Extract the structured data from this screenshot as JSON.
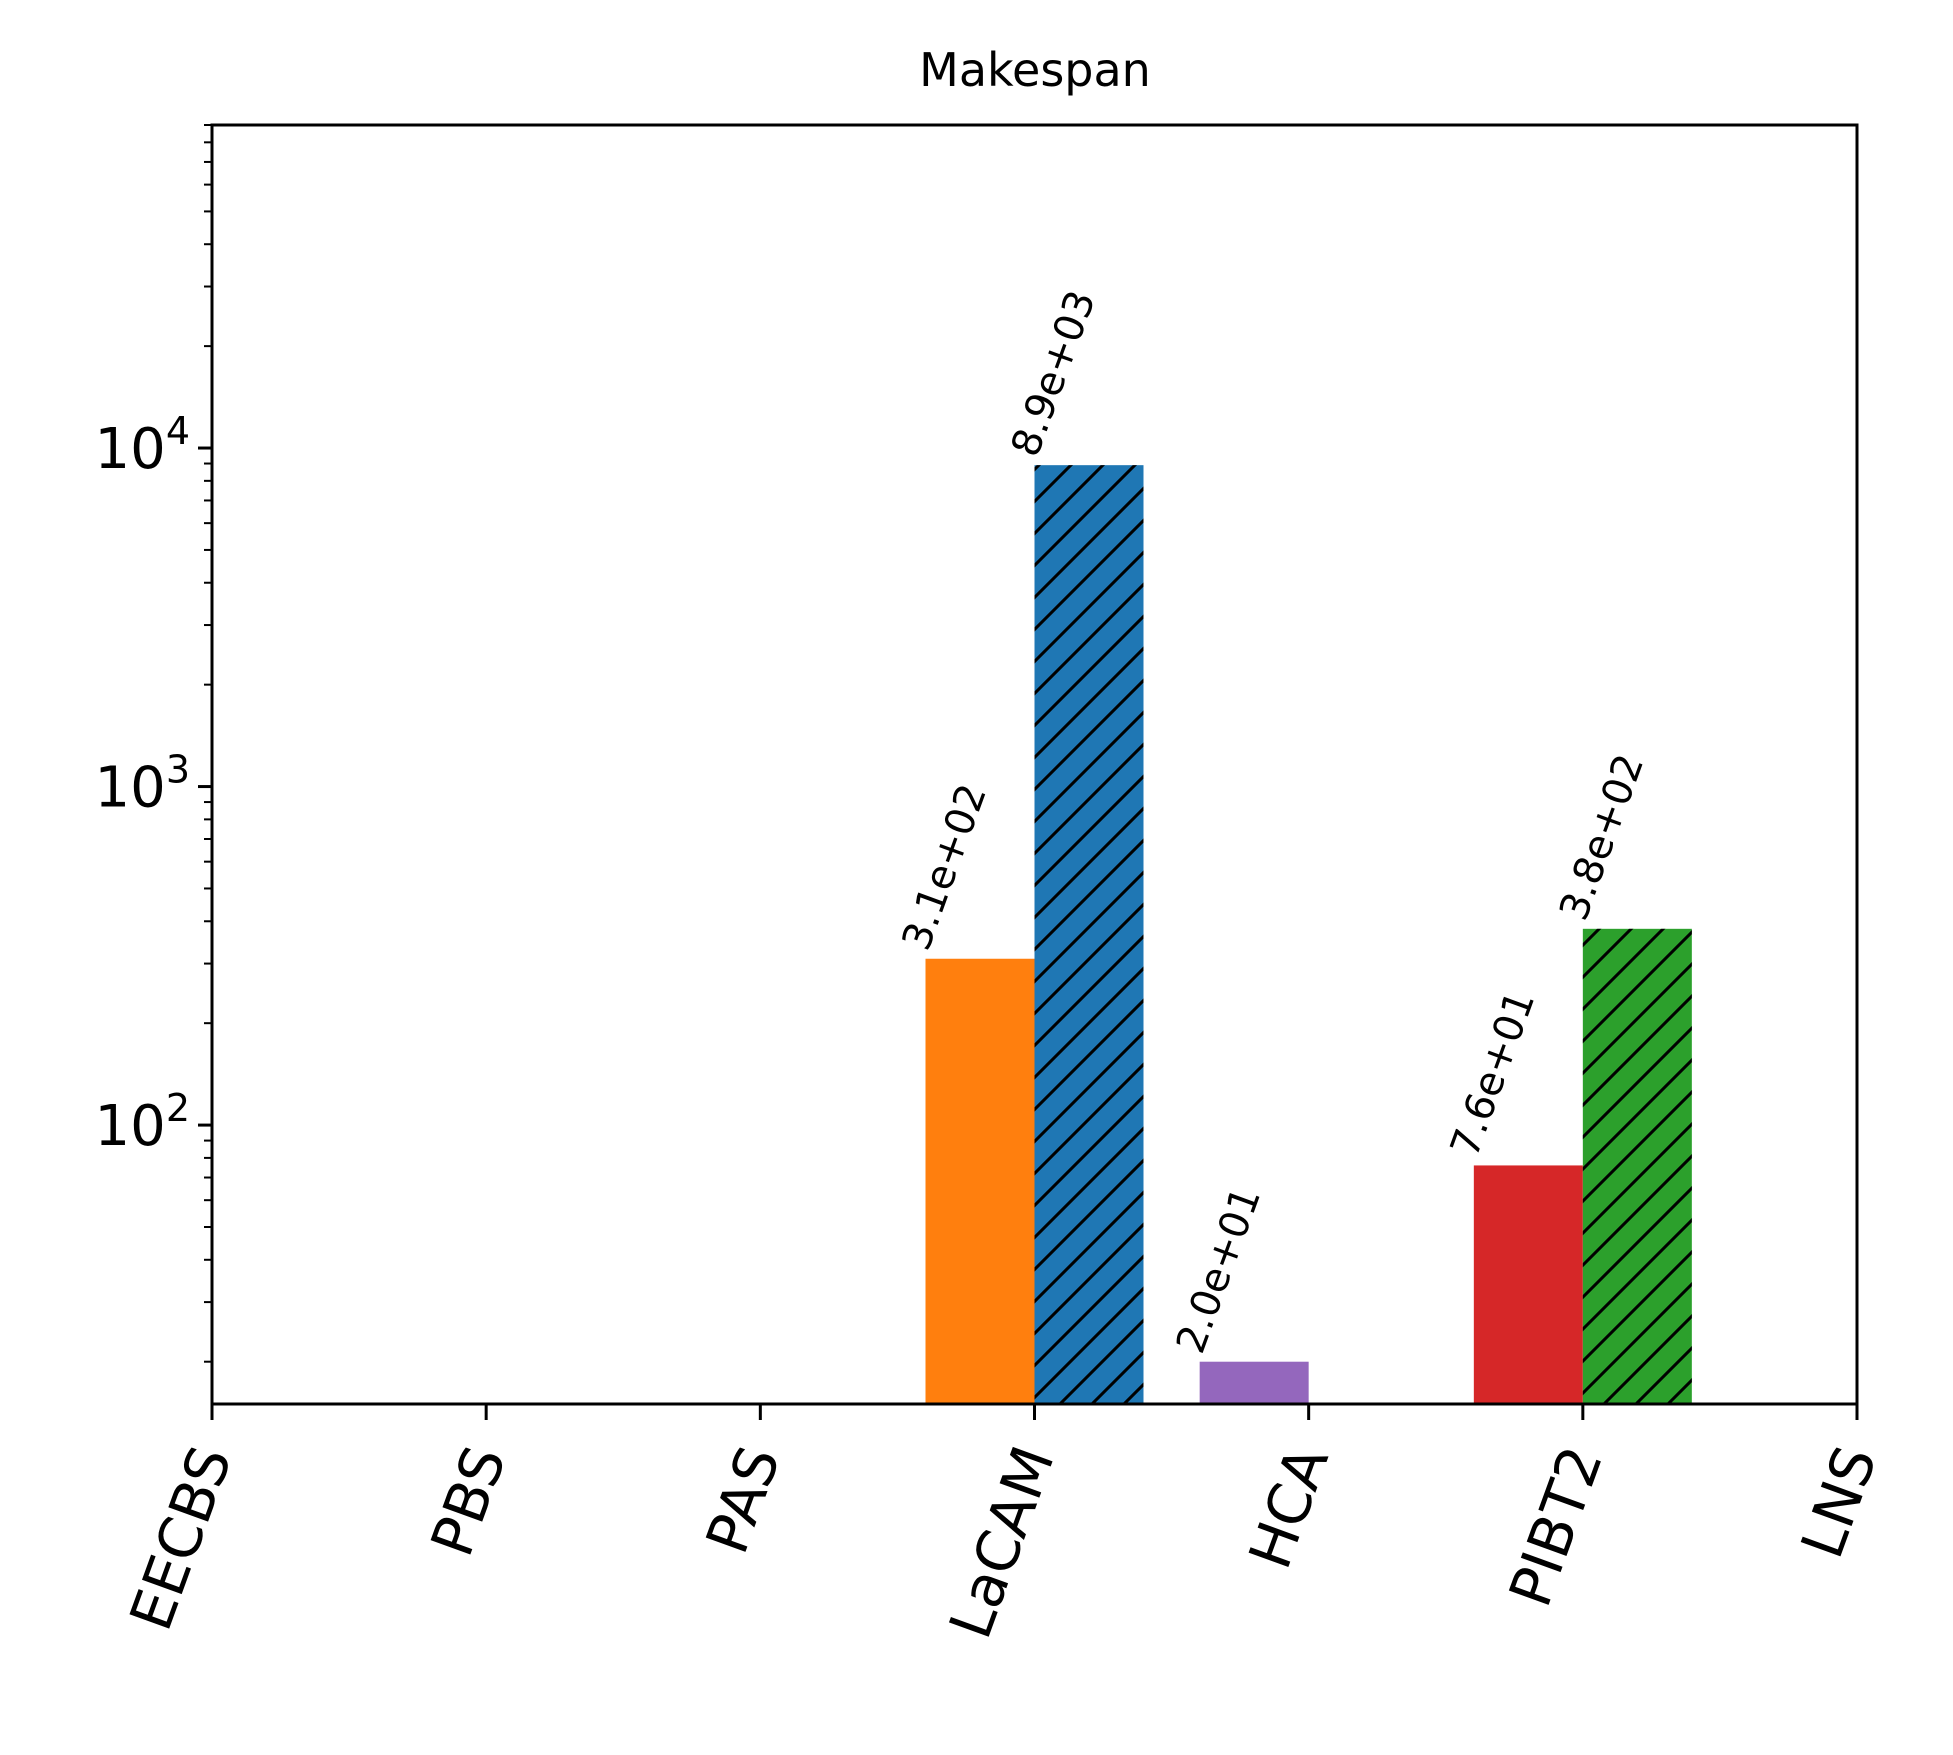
{
  "chart_data": {
    "type": "bar",
    "title": "Makespan",
    "xlabel": "",
    "ylabel": "",
    "yscale": "log",
    "ylim": [
      15,
      90000
    ],
    "grid": false,
    "legend": "none",
    "categories": [
      "EECBS",
      "PBS",
      "PAS",
      "LaCAM",
      "HCA",
      "PIBT2",
      "LNS"
    ],
    "yticks": [
      {
        "value": 100,
        "base": "10",
        "exp": "2"
      },
      {
        "value": 1000,
        "base": "10",
        "exp": "3"
      },
      {
        "value": 10000,
        "base": "10",
        "exp": "4"
      }
    ],
    "bars": [
      {
        "category": "LaCAM",
        "side": "left",
        "value": 310,
        "label": "3.1e+02",
        "color": "#ff7f0e",
        "hatch": false
      },
      {
        "category": "LaCAM",
        "side": "right",
        "value": 8900,
        "label": "8.9e+03",
        "color": "#1f77b4",
        "hatch": true
      },
      {
        "category": "HCA",
        "side": "left",
        "value": 20,
        "label": "2.0e+01",
        "color": "#9467bd",
        "hatch": false
      },
      {
        "category": "PIBT2",
        "side": "left",
        "value": 76,
        "label": "7.6e+01",
        "color": "#d62728",
        "hatch": false
      },
      {
        "category": "PIBT2",
        "side": "right",
        "value": 380,
        "label": "3.8e+02",
        "color": "#2ca02c",
        "hatch": true
      }
    ]
  }
}
